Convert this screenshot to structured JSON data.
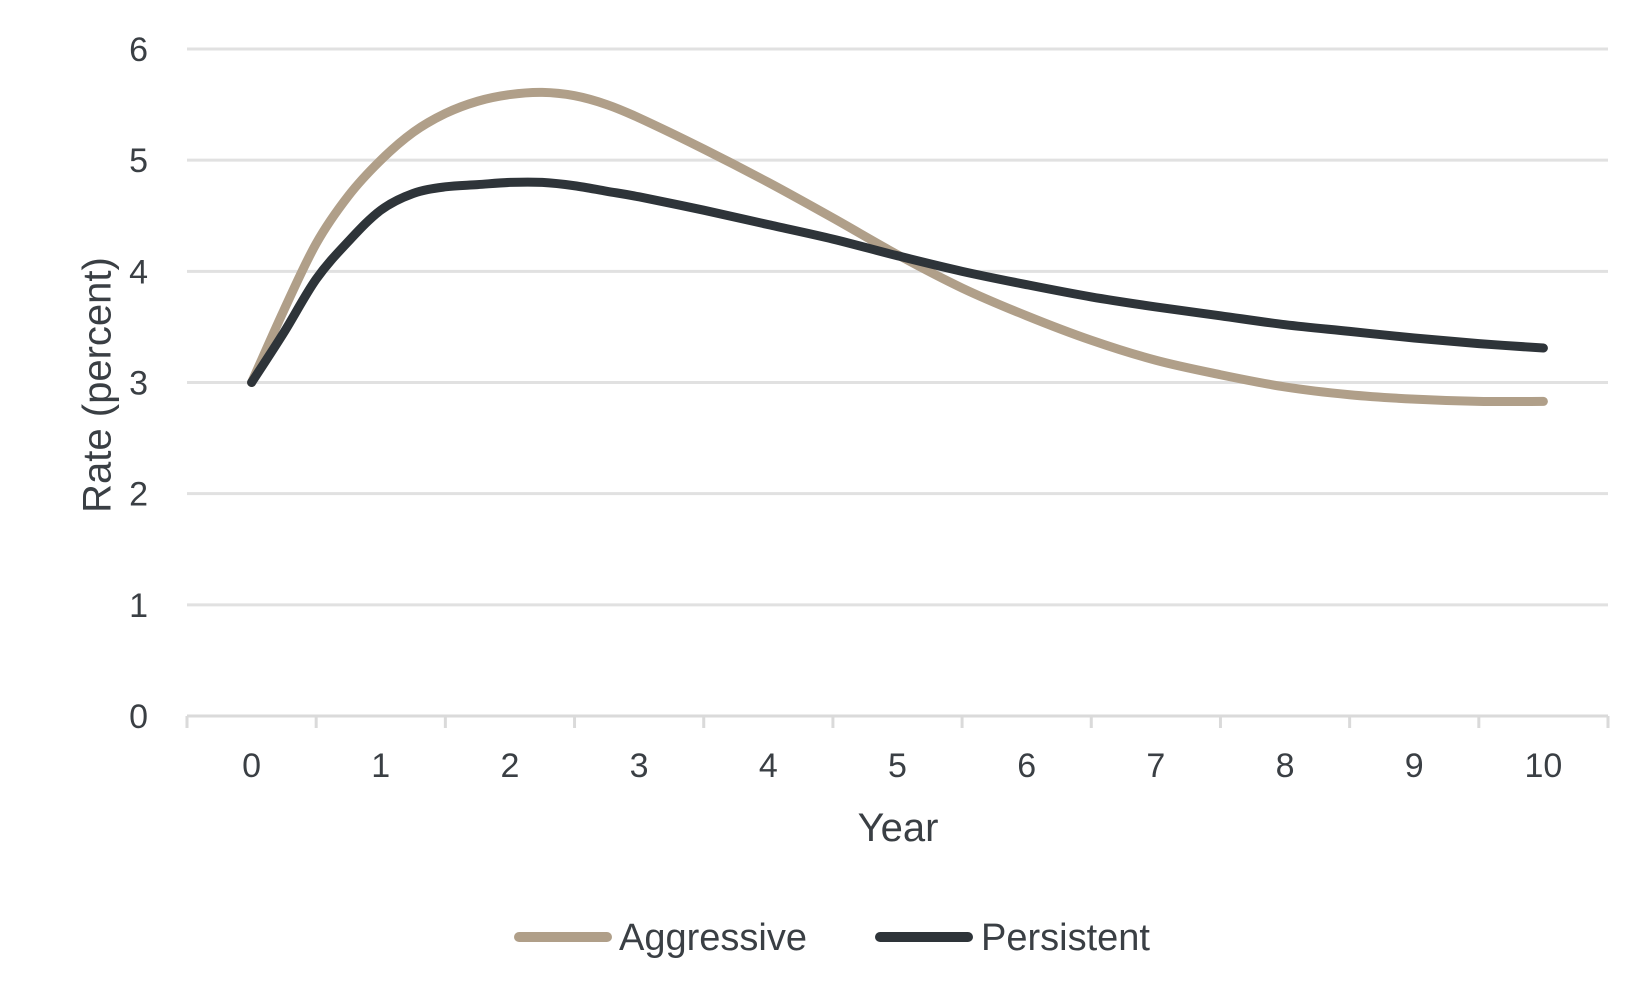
{
  "chart_data": {
    "type": "line",
    "title": "",
    "xlabel": "Year",
    "ylabel": "Rate (percent)",
    "xlim": [
      -0.5,
      10.5
    ],
    "ylim": [
      0,
      6
    ],
    "x_ticks": [
      "0",
      "1",
      "2",
      "3",
      "4",
      "5",
      "6",
      "7",
      "8",
      "9",
      "10"
    ],
    "y_ticks": [
      "0",
      "1",
      "2",
      "3",
      "4",
      "5",
      "6"
    ],
    "grid": true,
    "legend_position": "bottom-center",
    "series": [
      {
        "name": "Aggressive",
        "color": "#b09f89",
        "x": [
          0,
          0.25,
          0.5,
          0.75,
          1,
          1.25,
          1.5,
          1.75,
          2,
          2.25,
          2.5,
          2.75,
          3,
          3.5,
          4,
          4.5,
          5,
          5.5,
          6,
          6.5,
          7,
          7.5,
          8,
          8.5,
          9,
          9.5,
          10
        ],
        "y": [
          3.0,
          3.65,
          4.25,
          4.68,
          5.0,
          5.25,
          5.42,
          5.53,
          5.59,
          5.61,
          5.58,
          5.5,
          5.38,
          5.1,
          4.8,
          4.48,
          4.15,
          3.85,
          3.6,
          3.38,
          3.2,
          3.07,
          2.96,
          2.89,
          2.85,
          2.83,
          2.83
        ]
      },
      {
        "name": "Persistent",
        "color": "#2e3439",
        "x": [
          0,
          0.25,
          0.5,
          0.75,
          1,
          1.25,
          1.5,
          1.75,
          2,
          2.25,
          2.5,
          2.75,
          3,
          3.5,
          4,
          4.5,
          5,
          5.5,
          6,
          6.5,
          7,
          7.5,
          8,
          8.5,
          9,
          9.5,
          10
        ],
        "y": [
          3.0,
          3.45,
          3.93,
          4.27,
          4.55,
          4.7,
          4.76,
          4.78,
          4.8,
          4.8,
          4.77,
          4.72,
          4.67,
          4.55,
          4.42,
          4.29,
          4.14,
          4.0,
          3.88,
          3.77,
          3.68,
          3.6,
          3.52,
          3.46,
          3.4,
          3.35,
          3.31
        ]
      }
    ]
  }
}
